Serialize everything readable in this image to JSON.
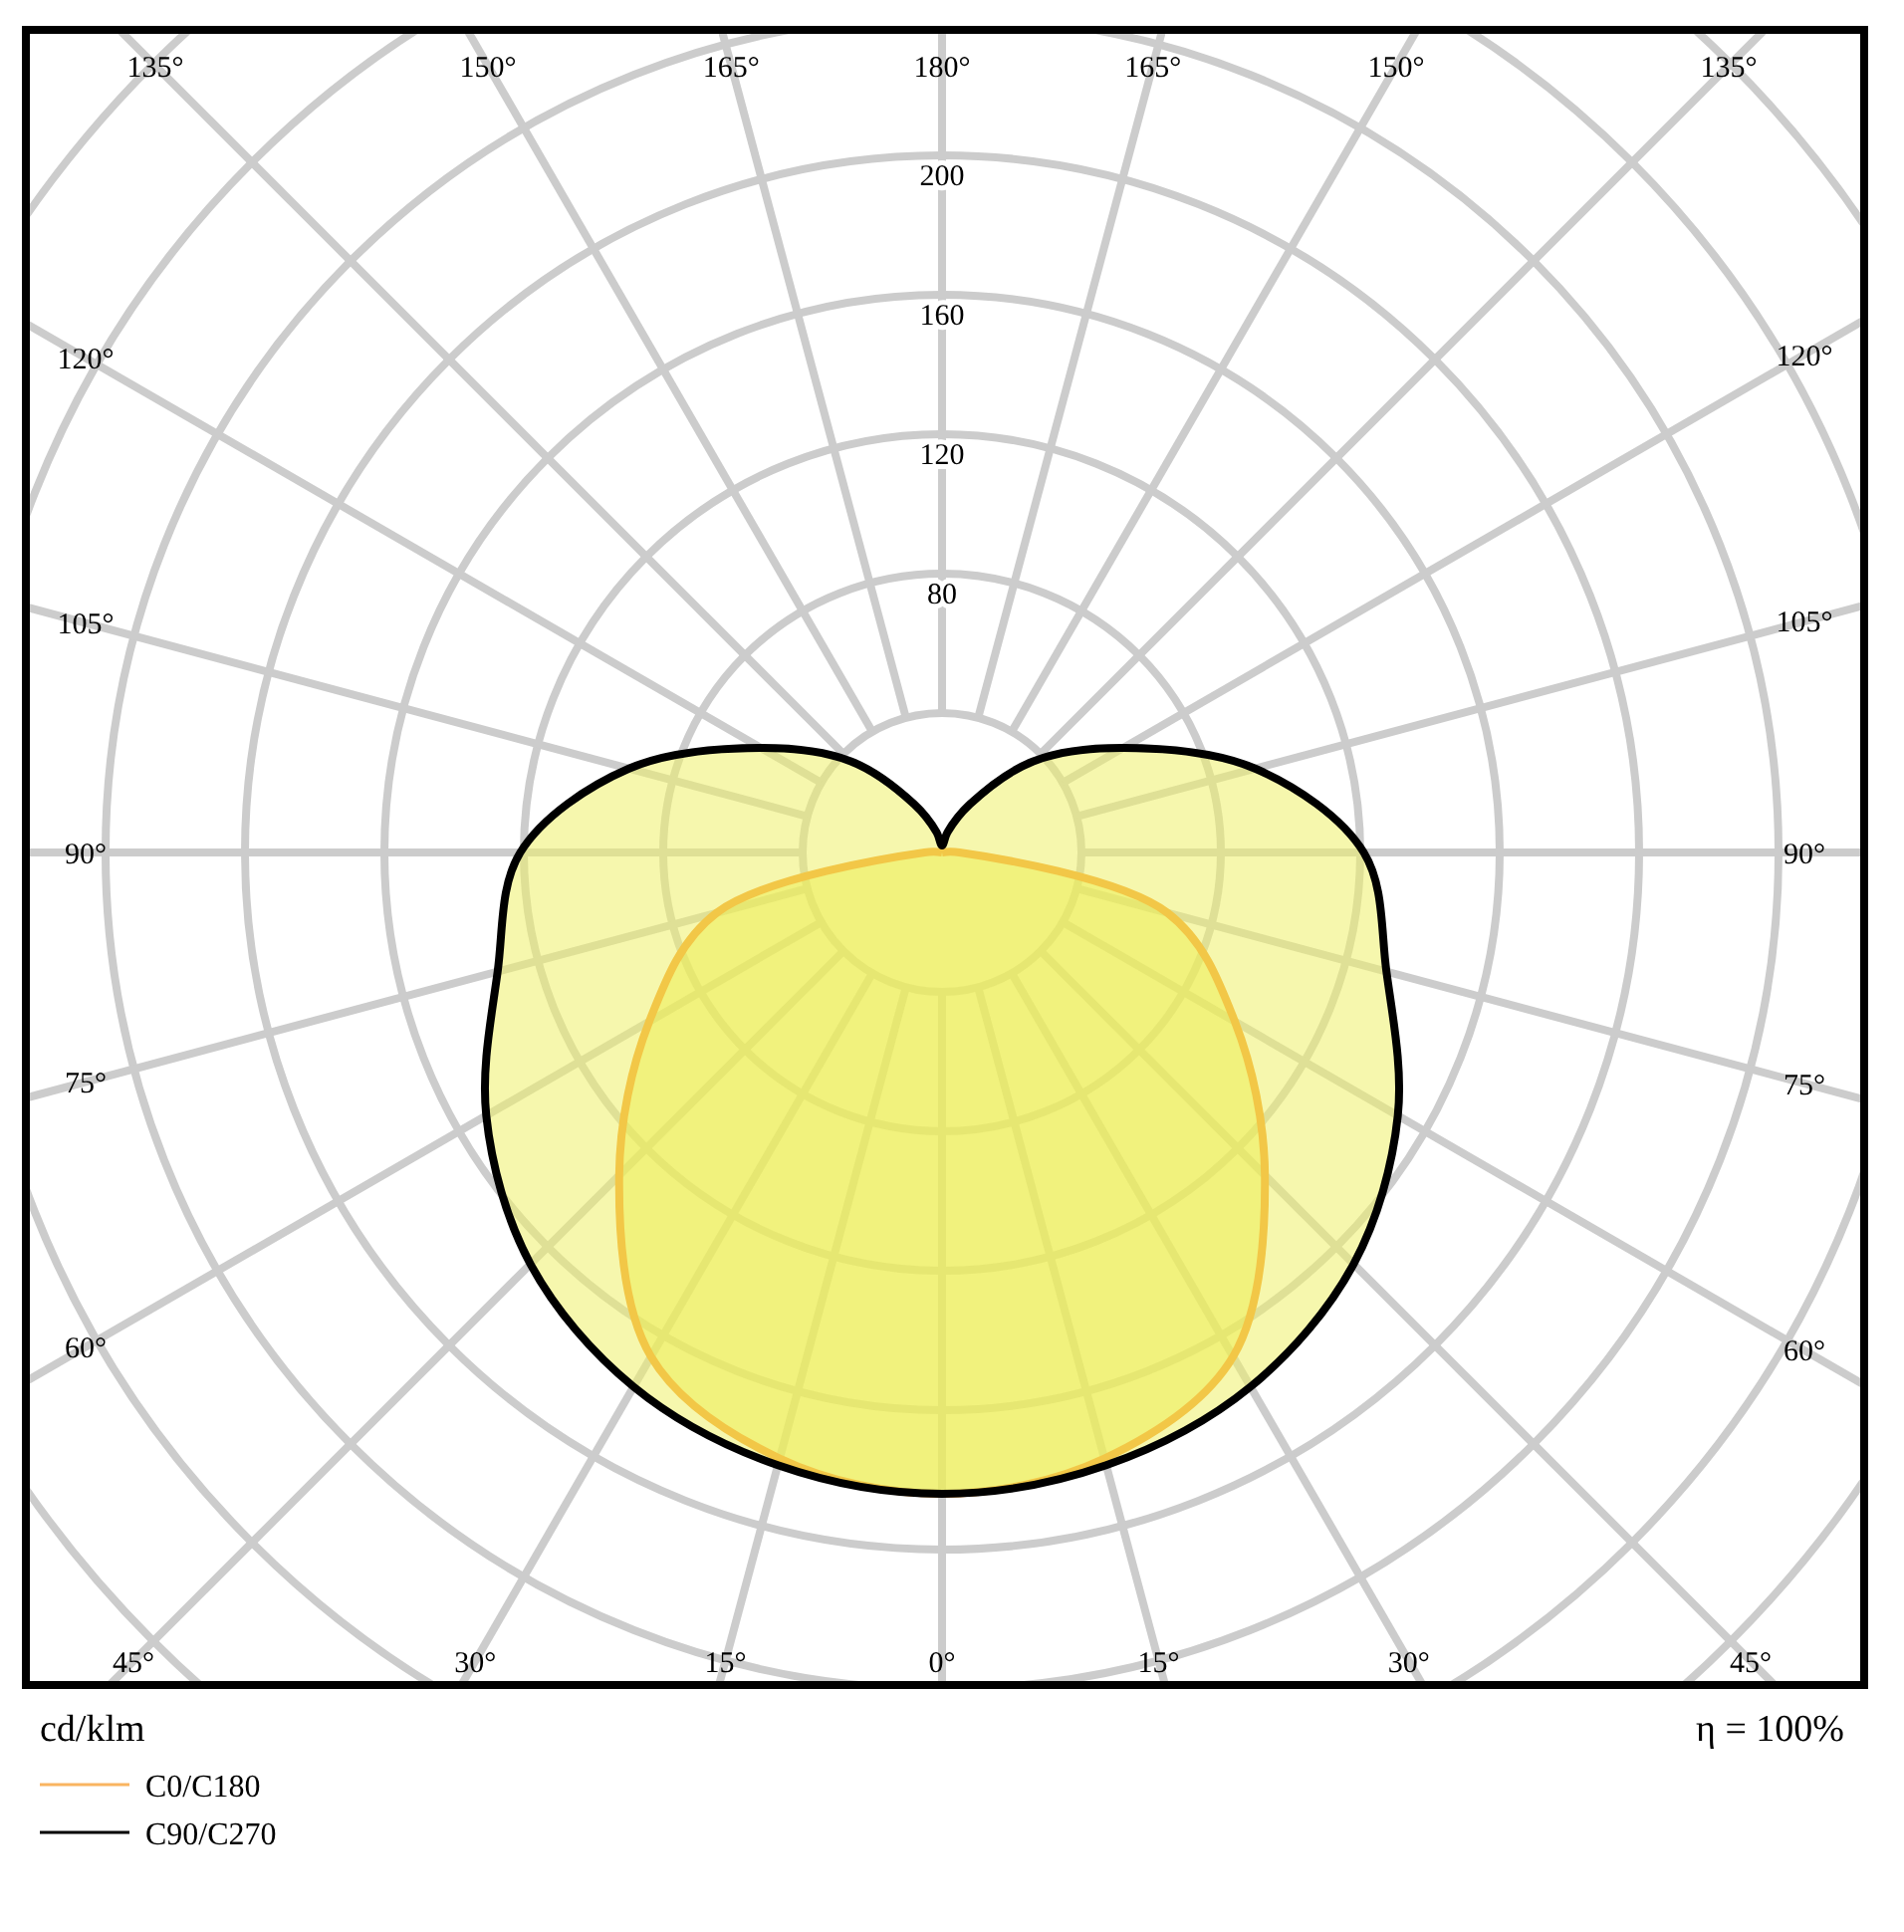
{
  "chart_data": {
    "type": "radar",
    "categories": [
      "180°",
      "165°",
      "150°",
      "135°",
      "120°",
      "105°",
      "90°",
      "75°",
      "60°",
      "45°",
      "30°",
      "15°",
      "0°",
      "15°",
      "30°",
      "45°",
      "60°",
      "75°",
      "90°",
      "105°",
      "120°",
      "135°",
      "150°",
      "165°"
    ],
    "series": [
      {
        "name": "C0/C180",
        "color": "#f7941d",
        "values": [
          0,
          0,
          0,
          0,
          0,
          0,
          5,
          67,
          97,
          131,
          167,
          180,
          184,
          180,
          167,
          131,
          97,
          67,
          5,
          0,
          0,
          0,
          0,
          0
        ]
      },
      {
        "name": "C90/C270",
        "color": "#000000",
        "values": [
          2,
          6,
          16,
          37,
          60,
          93,
          121,
          132,
          151,
          167,
          177,
          182,
          184,
          182,
          177,
          167,
          151,
          132,
          121,
          93,
          60,
          37,
          16,
          6
        ]
      }
    ],
    "ylim": [
      0,
      360
    ],
    "yticks": [
      80,
      120,
      160,
      200
    ],
    "ylabel": "cd/klm",
    "annotations": [
      "η = 100%"
    ],
    "grid": true,
    "legend": "bottom left"
  }
}
